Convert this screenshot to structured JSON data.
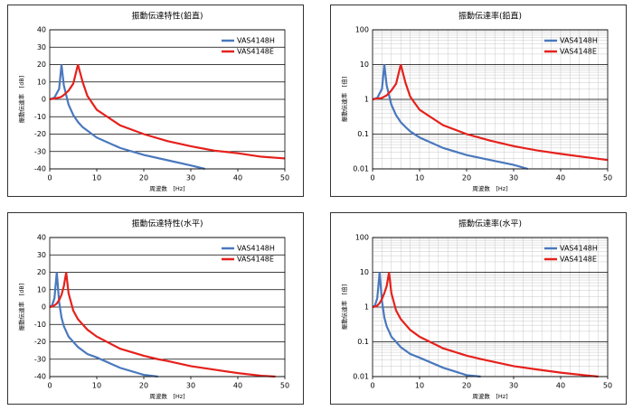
{
  "chart_data": [
    {
      "type": "line",
      "title": "振動伝達特性(鉛直)",
      "xlabel": "周波数　[Hz]",
      "ylabel": "振動伝達率　[dB]",
      "x": [
        0,
        1,
        2,
        2.5,
        3,
        4,
        5,
        6,
        7,
        8,
        10,
        15,
        20,
        25,
        30,
        33,
        35,
        40,
        45,
        50
      ],
      "series": [
        {
          "name": "VAS4148H",
          "color": "#4a78bd",
          "values": [
            0,
            1,
            6,
            20,
            8,
            -3,
            -9,
            -13,
            -16,
            -18,
            -22,
            -28,
            -32,
            -35,
            -38,
            -40,
            null,
            null,
            null,
            null
          ]
        },
        {
          "name": "VAS4148E",
          "color": "#e5211c",
          "values": [
            0,
            0.5,
            1,
            1.5,
            2.5,
            5,
            9,
            20,
            10,
            2,
            -6,
            -15,
            -20,
            -24,
            -27,
            -28.5,
            -29.5,
            -31,
            -33,
            -34
          ]
        }
      ],
      "xlim": [
        0,
        50
      ],
      "xticks": [
        0,
        10,
        20,
        30,
        40,
        50
      ],
      "ylim": [
        -40,
        40
      ],
      "yticks": [
        -40,
        -30,
        -20,
        -10,
        0,
        10,
        20,
        30,
        40
      ],
      "yscale": "linear",
      "grid": true,
      "legend": "upper right"
    },
    {
      "type": "line",
      "title": "振動伝達率(鉛直)",
      "xlabel": "周波数　[Hz]",
      "ylabel": "振動伝達率　[倍]",
      "x": [
        0,
        1,
        2,
        2.5,
        3,
        4,
        5,
        6,
        7,
        8,
        10,
        15,
        20,
        25,
        30,
        33,
        35,
        40,
        45,
        50
      ],
      "series": [
        {
          "name": "VAS4148H",
          "color": "#4a78bd",
          "values": [
            1,
            1.1,
            2,
            10,
            2.5,
            0.7,
            0.35,
            0.22,
            0.16,
            0.12,
            0.08,
            0.04,
            0.025,
            0.018,
            0.013,
            0.01,
            null,
            null,
            null,
            null
          ]
        },
        {
          "name": "VAS4148E",
          "color": "#e5211c",
          "values": [
            1,
            1.05,
            1.1,
            1.2,
            1.3,
            1.8,
            2.8,
            10,
            3,
            1.2,
            0.5,
            0.18,
            0.1,
            0.065,
            0.045,
            0.038,
            0.034,
            0.027,
            0.022,
            0.018
          ]
        }
      ],
      "xlim": [
        0,
        50
      ],
      "xticks": [
        0,
        10,
        20,
        30,
        40,
        50
      ],
      "ylim": [
        0.01,
        100
      ],
      "yticks": [
        0.01,
        0.1,
        1,
        10,
        100
      ],
      "yscale": "log",
      "grid": true,
      "legend": "upper right"
    },
    {
      "type": "line",
      "title": "振動伝達特性(水平)",
      "xlabel": "周波数　[Hz]",
      "ylabel": "振動伝達率　[dB]",
      "x": [
        0,
        0.5,
        1,
        1.5,
        2,
        2.5,
        3,
        3.5,
        4,
        5,
        6,
        8,
        10,
        15,
        20,
        23,
        25,
        30,
        35,
        40,
        45,
        48,
        50
      ],
      "series": [
        {
          "name": "VAS4148H",
          "color": "#4a78bd",
          "values": [
            0,
            1,
            5,
            20,
            3,
            -6,
            -11,
            -14,
            -17,
            -20,
            -23,
            -27,
            -29,
            -35,
            -39,
            -40,
            null,
            null,
            null,
            null,
            null,
            null,
            null
          ]
        },
        {
          "name": "VAS4148E",
          "color": "#e5211c",
          "values": [
            0,
            0.3,
            1,
            2,
            4,
            7,
            12,
            20,
            8,
            -2,
            -7,
            -13,
            -17,
            -24,
            -28,
            -30,
            -31,
            -34,
            -36,
            -38,
            -39.5,
            -40,
            null
          ]
        }
      ],
      "xlim": [
        0,
        50
      ],
      "xticks": [
        0,
        10,
        20,
        30,
        40,
        50
      ],
      "ylim": [
        -40,
        40
      ],
      "yticks": [
        -40,
        -30,
        -20,
        -10,
        0,
        10,
        20,
        30,
        40
      ],
      "yscale": "linear",
      "grid": true,
      "legend": "upper right"
    },
    {
      "type": "line",
      "title": "振動伝達率(水平)",
      "xlabel": "周波数　[Hz]",
      "ylabel": "振動伝達率　[倍]",
      "x": [
        0,
        0.5,
        1,
        1.5,
        2,
        2.5,
        3,
        3.5,
        4,
        5,
        6,
        8,
        10,
        15,
        20,
        23,
        25,
        30,
        35,
        40,
        45,
        48,
        50
      ],
      "series": [
        {
          "name": "VAS4148H",
          "color": "#4a78bd",
          "values": [
            1,
            1.1,
            1.8,
            10,
            1.5,
            0.5,
            0.28,
            0.2,
            0.14,
            0.1,
            0.07,
            0.045,
            0.035,
            0.018,
            0.011,
            0.01,
            null,
            null,
            null,
            null,
            null,
            null,
            null
          ]
        },
        {
          "name": "VAS4148E",
          "color": "#e5211c",
          "values": [
            1,
            1.03,
            1.1,
            1.3,
            1.7,
            2.5,
            4,
            10,
            2.5,
            0.8,
            0.45,
            0.22,
            0.14,
            0.065,
            0.04,
            0.032,
            0.028,
            0.02,
            0.016,
            0.013,
            0.011,
            0.01,
            null
          ]
        }
      ],
      "xlim": [
        0,
        50
      ],
      "xticks": [
        0,
        10,
        20,
        30,
        40,
        50
      ],
      "ylim": [
        0.01,
        100
      ],
      "yticks": [
        0.01,
        0.1,
        1,
        10,
        100
      ],
      "yscale": "log",
      "grid": true,
      "legend": "upper right"
    }
  ]
}
